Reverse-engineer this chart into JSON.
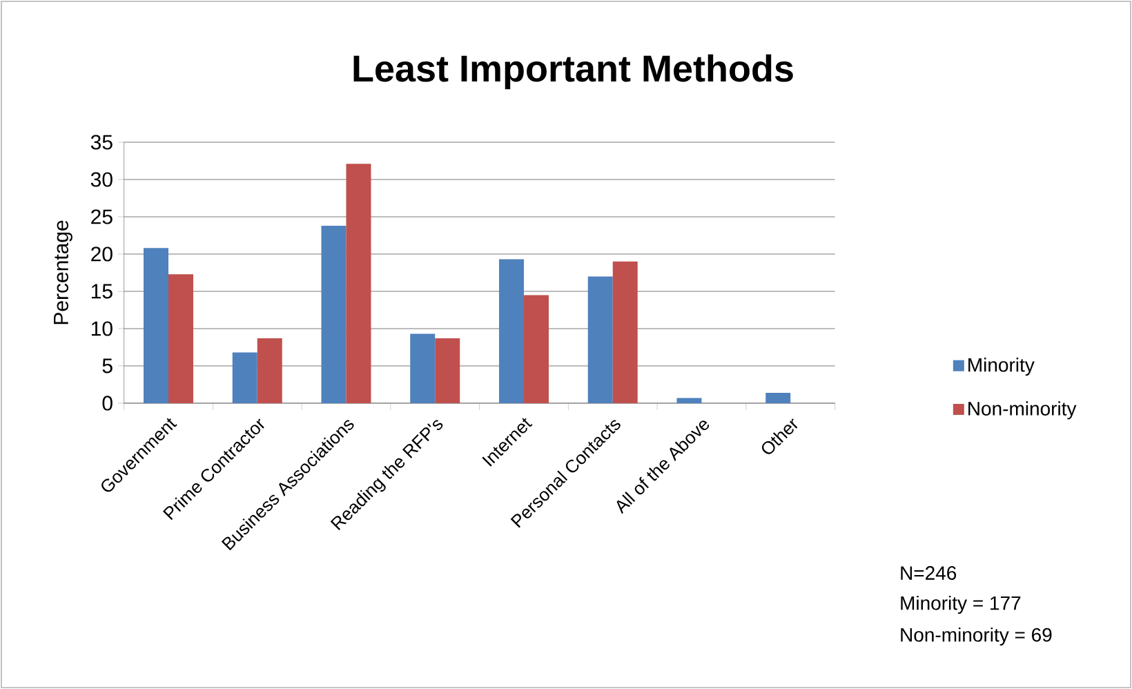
{
  "chart_data": {
    "type": "bar",
    "title": "Least Important Methods",
    "ylabel": "Percentage",
    "categories": [
      "Government",
      "Prime Contractor",
      "Business Associations",
      "Reading the RFP's",
      "Internet",
      "Personal Contacts",
      "All of the Above",
      "Other"
    ],
    "series": [
      {
        "name": "Minority",
        "color": "#4f81bd",
        "values": [
          20.8,
          6.8,
          23.8,
          9.3,
          19.3,
          17.0,
          0.7,
          1.4
        ]
      },
      {
        "name": "Non-minority",
        "color": "#c0504d",
        "values": [
          17.3,
          8.7,
          32.1,
          8.7,
          14.5,
          19.0,
          0,
          0
        ]
      }
    ],
    "ylim": [
      0,
      35
    ],
    "yticks": [
      0,
      5,
      10,
      15,
      20,
      25,
      30,
      35
    ],
    "grid": "y",
    "legend": "right",
    "annotations": [
      "N=246",
      "Minority = 177",
      "Non-minority = 69"
    ]
  }
}
